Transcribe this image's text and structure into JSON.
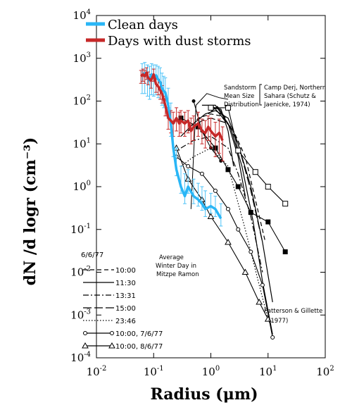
{
  "chart_data": {
    "type": "line",
    "xscale": "log",
    "yscale": "log",
    "xlim": [
      0.01,
      100
    ],
    "ylim": [
      0.0001,
      10000
    ],
    "xlabel": "Radius (μm)",
    "ylabel": "dN /d logr (cm⁻³)",
    "grid": false,
    "legend_position": "top-left",
    "x_ticks": [
      {
        "value": 0.01,
        "base": "10",
        "exp": "-2"
      },
      {
        "value": 0.1,
        "base": "10",
        "exp": "-1"
      },
      {
        "value": 1,
        "base": "10",
        "exp": "0"
      },
      {
        "value": 10,
        "base": "10",
        "exp": "1"
      },
      {
        "value": 100,
        "base": "10",
        "exp": "2"
      }
    ],
    "y_ticks": [
      {
        "value": 0.0001,
        "base": "10",
        "exp": "-4"
      },
      {
        "value": 0.001,
        "base": "10",
        "exp": "-3"
      },
      {
        "value": 0.01,
        "base": "10",
        "exp": "-2"
      },
      {
        "value": 0.1,
        "base": "10",
        "exp": "-1"
      },
      {
        "value": 1,
        "base": "10",
        "exp": "0"
      },
      {
        "value": 10,
        "base": "10",
        "exp": "1"
      },
      {
        "value": 100,
        "base": "10",
        "exp": "2"
      },
      {
        "value": 1000,
        "base": "10",
        "exp": "3"
      },
      {
        "value": 10000,
        "base": "10",
        "exp": "4"
      }
    ],
    "colored_series": [
      {
        "name": "Clean days",
        "color": "#29b6f6",
        "error_color": "#4fc3f7",
        "x": [
          0.063,
          0.07,
          0.078,
          0.085,
          0.092,
          0.1,
          0.11,
          0.12,
          0.13,
          0.14,
          0.15,
          0.16,
          0.18,
          0.2,
          0.22,
          0.25,
          0.3,
          0.35,
          0.4,
          0.5,
          0.6,
          0.7,
          0.8,
          1.0,
          1.2,
          1.5
        ],
        "y": [
          400,
          450,
          380,
          300,
          420,
          350,
          400,
          320,
          280,
          200,
          170,
          160,
          80,
          30,
          8,
          2.5,
          1.0,
          0.6,
          1.0,
          0.6,
          0.5,
          0.4,
          0.3,
          0.35,
          0.3,
          0.18
        ],
        "err_lo": [
          150,
          150,
          130,
          110,
          140,
          130,
          140,
          120,
          110,
          80,
          70,
          70,
          40,
          15,
          5,
          1.8,
          0.7,
          0.4,
          0.7,
          0.4,
          0.35,
          0.28,
          0.2,
          0.24,
          0.2,
          0.12
        ],
        "err_hi": [
          750,
          800,
          700,
          650,
          750,
          700,
          700,
          650,
          600,
          450,
          380,
          350,
          200,
          90,
          30,
          8,
          3,
          2,
          2.5,
          1.5,
          1.2,
          1.0,
          0.8,
          0.7,
          0.6,
          0.4
        ]
      },
      {
        "name": "Days with dust storms",
        "color": "#c62828",
        "error_color": "#c62828",
        "x": [
          0.06,
          0.065,
          0.07,
          0.075,
          0.08,
          0.09,
          0.1,
          0.11,
          0.12,
          0.13,
          0.14,
          0.16,
          0.18,
          0.2,
          0.22,
          0.25,
          0.28,
          0.3,
          0.35,
          0.4,
          0.45,
          0.5,
          0.6,
          0.7,
          0.8,
          0.9,
          1.0,
          1.2,
          1.4,
          1.6
        ],
        "y": [
          380,
          420,
          380,
          460,
          350,
          300,
          420,
          250,
          220,
          180,
          150,
          80,
          40,
          35,
          30,
          40,
          30,
          35,
          30,
          35,
          20,
          25,
          30,
          20,
          18,
          25,
          20,
          15,
          18,
          12
        ],
        "err_lo": [
          260,
          290,
          260,
          320,
          240,
          200,
          290,
          160,
          140,
          110,
          90,
          45,
          22,
          18,
          15,
          20,
          15,
          18,
          15,
          18,
          10,
          12,
          15,
          10,
          8,
          12,
          8,
          5,
          6,
          4
        ],
        "err_hi": [
          520,
          560,
          520,
          600,
          480,
          420,
          560,
          360,
          320,
          270,
          230,
          130,
          70,
          60,
          55,
          70,
          55,
          60,
          55,
          60,
          40,
          45,
          55,
          38,
          35,
          45,
          40,
          32,
          38,
          25
        ]
      }
    ],
    "background_curves": [
      {
        "style": "dashed",
        "x": [
          0.4,
          0.6,
          1.0,
          1.5,
          2.5,
          4,
          6,
          9
        ],
        "y": [
          20,
          40,
          50,
          45,
          20,
          5,
          0.5,
          0.05
        ]
      },
      {
        "style": "solid",
        "x": [
          0.3,
          0.5,
          0.8,
          1.2,
          2,
          3,
          5,
          8,
          12
        ],
        "y": [
          15,
          30,
          50,
          60,
          40,
          10,
          1,
          0.05,
          0.002
        ]
      },
      {
        "style": "dashdot",
        "x": [
          0.3,
          0.5,
          1.0,
          2,
          3,
          5,
          8
        ],
        "y": [
          8,
          12,
          15,
          8,
          2,
          0.2,
          0.01
        ]
      },
      {
        "style": "longdash",
        "x": [
          0.4,
          0.7,
          1.0,
          2,
          3,
          5,
          8
        ],
        "y": [
          20,
          35,
          40,
          30,
          10,
          0.8,
          0.05
        ]
      },
      {
        "style": "dotted",
        "x": [
          0.3,
          0.5,
          1.0,
          2,
          4,
          7,
          10
        ],
        "y": [
          3,
          5,
          8,
          3,
          0.1,
          0.005,
          0.0008
        ]
      },
      {
        "style": "solid",
        "x": [
          0.7,
          1.2,
          2.0,
          3.0,
          4.0
        ],
        "y": [
          80,
          80,
          30,
          5,
          0.6
        ]
      },
      {
        "style": "solid",
        "x": [
          1.0,
          1.5,
          2.0,
          2.5
        ],
        "y": [
          70,
          65,
          20,
          3
        ]
      },
      {
        "style": "solid",
        "x": [
          0.9,
          1.3,
          1.8
        ],
        "y": [
          50,
          75,
          40
        ]
      },
      {
        "style": "solid",
        "x": [
          1.1,
          2.2,
          3.5,
          5.5,
          8,
          12
        ],
        "y": [
          75,
          25,
          3,
          0.15,
          0.006,
          0.00035
        ]
      }
    ],
    "marker_series": [
      {
        "marker": "circle",
        "x": [
          0.25,
          0.4,
          0.7,
          1.2,
          2.0,
          3.0,
          5.0,
          8.0,
          12.0
        ],
        "y": [
          5,
          3,
          2,
          0.8,
          0.3,
          0.1,
          0.03,
          0.005,
          0.0003
        ]
      },
      {
        "marker": "triangle",
        "x": [
          0.25,
          0.4,
          0.7,
          1.0,
          2.0,
          4.0,
          7.0,
          10.0
        ],
        "y": [
          8,
          1.5,
          0.5,
          0.2,
          0.05,
          0.01,
          0.002,
          0.0008
        ]
      },
      {
        "marker": "open-square",
        "x": [
          1.0,
          2.0,
          3.0,
          6.0,
          10.0,
          20.0
        ],
        "y": [
          70,
          70,
          7,
          2.2,
          1.0,
          0.4
        ]
      },
      {
        "marker": "filled-square",
        "x": [
          0.3,
          0.6,
          1.2,
          2.0,
          3.0,
          5.0,
          10.0,
          20.0
        ],
        "y": [
          40,
          25,
          8,
          2.5,
          1.0,
          0.25,
          0.15,
          0.03
        ]
      },
      {
        "marker": "filled-dot",
        "x": [
          0.5,
          0.7,
          1.0,
          1.5
        ],
        "y": [
          100,
          20,
          8,
          4
        ]
      }
    ],
    "reference_lines": [
      {
        "x": [
          0.55,
          0.85,
          1.4,
          2.0
        ],
        "y": [
          80,
          150,
          120,
          110
        ]
      },
      {
        "x": [
          0.55,
          0.45
        ],
        "y": [
          80,
          0.3
        ]
      }
    ],
    "annotations": {
      "sandstorm": [
        "Sandstorm",
        "Mean Size",
        "Distribution"
      ],
      "camp": [
        "Camp Derj, Northern",
        "Sahara (Schutz &",
        "Jaenicke, 1974)"
      ],
      "average": [
        "Average",
        "Winter Day in",
        "Mitzpe Ramon"
      ],
      "patterson": [
        "Patterson & Gillette",
        "(1977)"
      ]
    },
    "time_legend": {
      "date": "6/6/77",
      "items": [
        {
          "label": "10:00",
          "style": "dashed"
        },
        {
          "label": "11:30",
          "style": "solid"
        },
        {
          "label": "13:31",
          "style": "dashdot"
        },
        {
          "label": "15:00",
          "style": "longdash"
        },
        {
          "label": "23:46",
          "style": "dotted"
        },
        {
          "label": "10:00, 7/6/77",
          "style": "circle"
        },
        {
          "label": "10:00, 8/6/77",
          "style": "triangle"
        }
      ]
    }
  }
}
